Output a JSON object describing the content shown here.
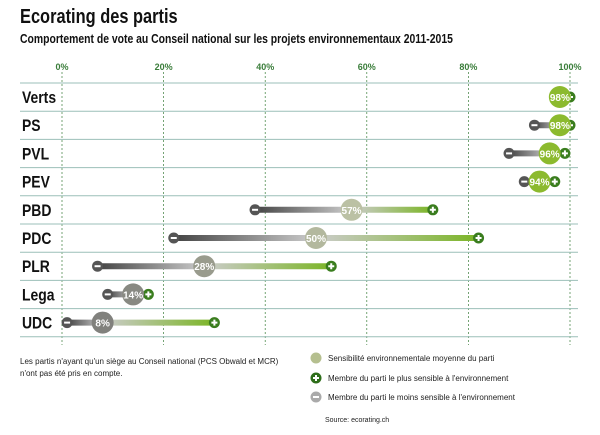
{
  "chart_data": {
    "type": "range-dot",
    "title": "Ecorating des partis",
    "subtitle": "Comportement de vote au Conseil national sur les projets environnementaux 2011-2015",
    "xlim": [
      0,
      100
    ],
    "ticks": [
      "0%",
      "20%",
      "40%",
      "60%",
      "80%",
      "100%"
    ],
    "grid": true,
    "colors": {
      "green": "#8cba2e",
      "dark_green": "#3a7d1e",
      "gray": "#6f6f6f",
      "axis": "#3a7d3a",
      "rule": "#9bbfb8"
    },
    "categories": [
      "Verts",
      "PS",
      "PVL",
      "PEV",
      "PBD",
      "PDC",
      "PLR",
      "Lega",
      "UDC"
    ],
    "average": [
      98,
      98,
      96,
      94,
      57,
      50,
      28,
      14,
      8
    ],
    "average_labels": [
      "98%",
      "98%",
      "96%",
      "94%",
      "57%",
      "50%",
      "28%",
      "14%",
      "8%"
    ],
    "min": [
      97,
      93,
      88,
      91,
      38,
      22,
      7,
      9,
      1
    ],
    "max": [
      100,
      100,
      99,
      97,
      73,
      82,
      53,
      17,
      30
    ]
  },
  "note": "Les partis n'ayant qu'un siège au Conseil national (PCS Obwald et MCR) n'ont pas été pris en compte.",
  "legend": [
    {
      "icon": "average-circle-icon",
      "label": "Sensibilité environnementale moyenne du parti"
    },
    {
      "icon": "plus-circle-icon",
      "label": "Membre du parti le plus sensible à l'environnement"
    },
    {
      "icon": "minus-circle-icon",
      "label": "Membre du parti le moins sensible à l'environnement"
    }
  ],
  "source": "Source: ecorating.ch"
}
